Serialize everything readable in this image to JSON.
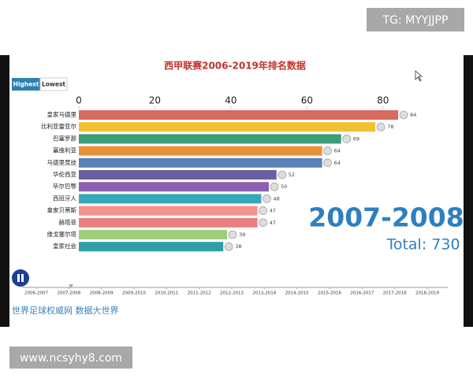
{
  "header": {
    "watermark": "TG: MYYJJPP"
  },
  "footer": {
    "url": "www.ncsyhy8.com",
    "source": "世界足球权威网 数据大世界"
  },
  "controls": {
    "highest": "Highest",
    "lowest": "Lowest"
  },
  "period": "2007-2008",
  "total": "Total: 730",
  "timeline": [
    "2006-2007",
    "2007-2008",
    "2008-2009",
    "2009-2010",
    "2010-2011",
    "2011-2012",
    "2012-2013",
    "2013-2014",
    "2014-2015",
    "2015-2016",
    "2016-2017",
    "2017-2018",
    "2018-2019"
  ],
  "chart_data": {
    "type": "bar",
    "orientation": "horizontal",
    "title": "西甲联赛2006-2019年排名数据",
    "categories": [
      "皇家马德里",
      "比利亚雷亚尔",
      "巴塞罗那",
      "塞维利亚",
      "马德里竞技",
      "华伦西亚",
      "毕尔巴鄂",
      "西班牙人",
      "皇家贝蒂斯",
      "赫塔菲",
      "维戈塞尔塔",
      "皇家社会"
    ],
    "values": [
      84,
      78,
      69,
      64,
      64,
      52,
      50,
      48,
      47,
      47,
      39,
      38
    ],
    "colors": [
      "#d8695e",
      "#f0c232",
      "#3a9d78",
      "#e8913b",
      "#5b7fb6",
      "#6a5fa1",
      "#8e60b1",
      "#37a8b8",
      "#f3938b",
      "#e7807e",
      "#9dcf7b",
      "#2f9ea8"
    ],
    "xlim": [
      0,
      90
    ],
    "xticks": [
      0,
      20,
      40,
      60,
      80
    ],
    "grid": false
  }
}
